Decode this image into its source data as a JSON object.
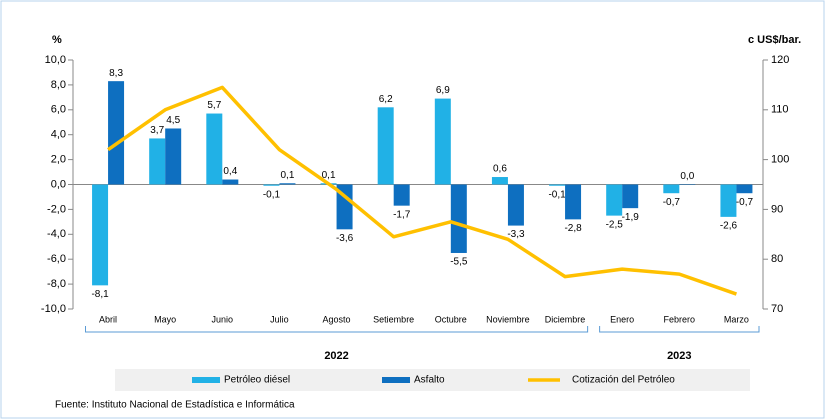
{
  "chart_data": {
    "type": "bar-line",
    "y_label": "%",
    "y2_label": "c US$/bar.",
    "categories": [
      "Abril",
      "Mayo",
      "Junio",
      "Julio",
      "Agosto",
      "Setiembre",
      "Octubre",
      "Noviembre",
      "Diciembre",
      "Enero",
      "Febrero",
      "Marzo"
    ],
    "groups": [
      {
        "label": "2022",
        "size": 9
      },
      {
        "label": "2023",
        "size": 3
      }
    ],
    "series": [
      {
        "name": "Petróleo diésel",
        "color": "#21b1e6",
        "kind": "bar",
        "values": [
          -8.1,
          3.7,
          5.7,
          -0.1,
          0.1,
          6.2,
          6.9,
          0.6,
          -0.1,
          -2.5,
          -0.7,
          -2.6
        ],
        "value_labels": [
          "-8,1",
          "3,7",
          "5,7",
          "-0,1",
          "0,1",
          "6,2",
          "6,9",
          "0,6",
          "-0,1",
          "-2,5",
          "-0,7",
          "-2,6"
        ]
      },
      {
        "name": "Asfalto",
        "color": "#0e6fc0",
        "kind": "bar",
        "values": [
          8.3,
          4.5,
          0.4,
          0.1,
          -3.6,
          -1.7,
          -5.5,
          -3.3,
          -2.8,
          -1.9,
          0.0,
          -0.7
        ],
        "value_labels": [
          "8,3",
          "4,5",
          "0,4",
          "0,1",
          "-3,6",
          "-1,7",
          "-5,5",
          "-3,3",
          "-2,8",
          "-1,9",
          "0,0",
          "-0,7"
        ]
      },
      {
        "name": "Cotización del  Petróleo",
        "color": "#ffc000",
        "kind": "line",
        "axis": "y2",
        "values": [
          102,
          110,
          114.5,
          102,
          94,
          84.5,
          87.5,
          84,
          76.5,
          78,
          77,
          73
        ]
      }
    ],
    "ylim": [
      -10,
      10
    ],
    "yticks": [
      {
        "value": 10,
        "label": "10,0"
      },
      {
        "value": 8,
        "label": "8,0"
      },
      {
        "value": 6,
        "label": "6,0"
      },
      {
        "value": 4,
        "label": "4,0"
      },
      {
        "value": 2,
        "label": "2,0"
      },
      {
        "value": 0,
        "label": "0,0"
      },
      {
        "value": -2,
        "label": "-2,0"
      },
      {
        "value": -4,
        "label": "-4,0"
      },
      {
        "value": -6,
        "label": "-6,0"
      },
      {
        "value": -8,
        "label": "-8,0"
      },
      {
        "value": -10,
        "label": "-10,0"
      }
    ],
    "y2lim": [
      70,
      120
    ],
    "y2ticks": [
      70,
      80,
      90,
      100,
      110,
      120
    ],
    "source": "Fuente: Instituto Nacional de Estadística e Informática"
  }
}
